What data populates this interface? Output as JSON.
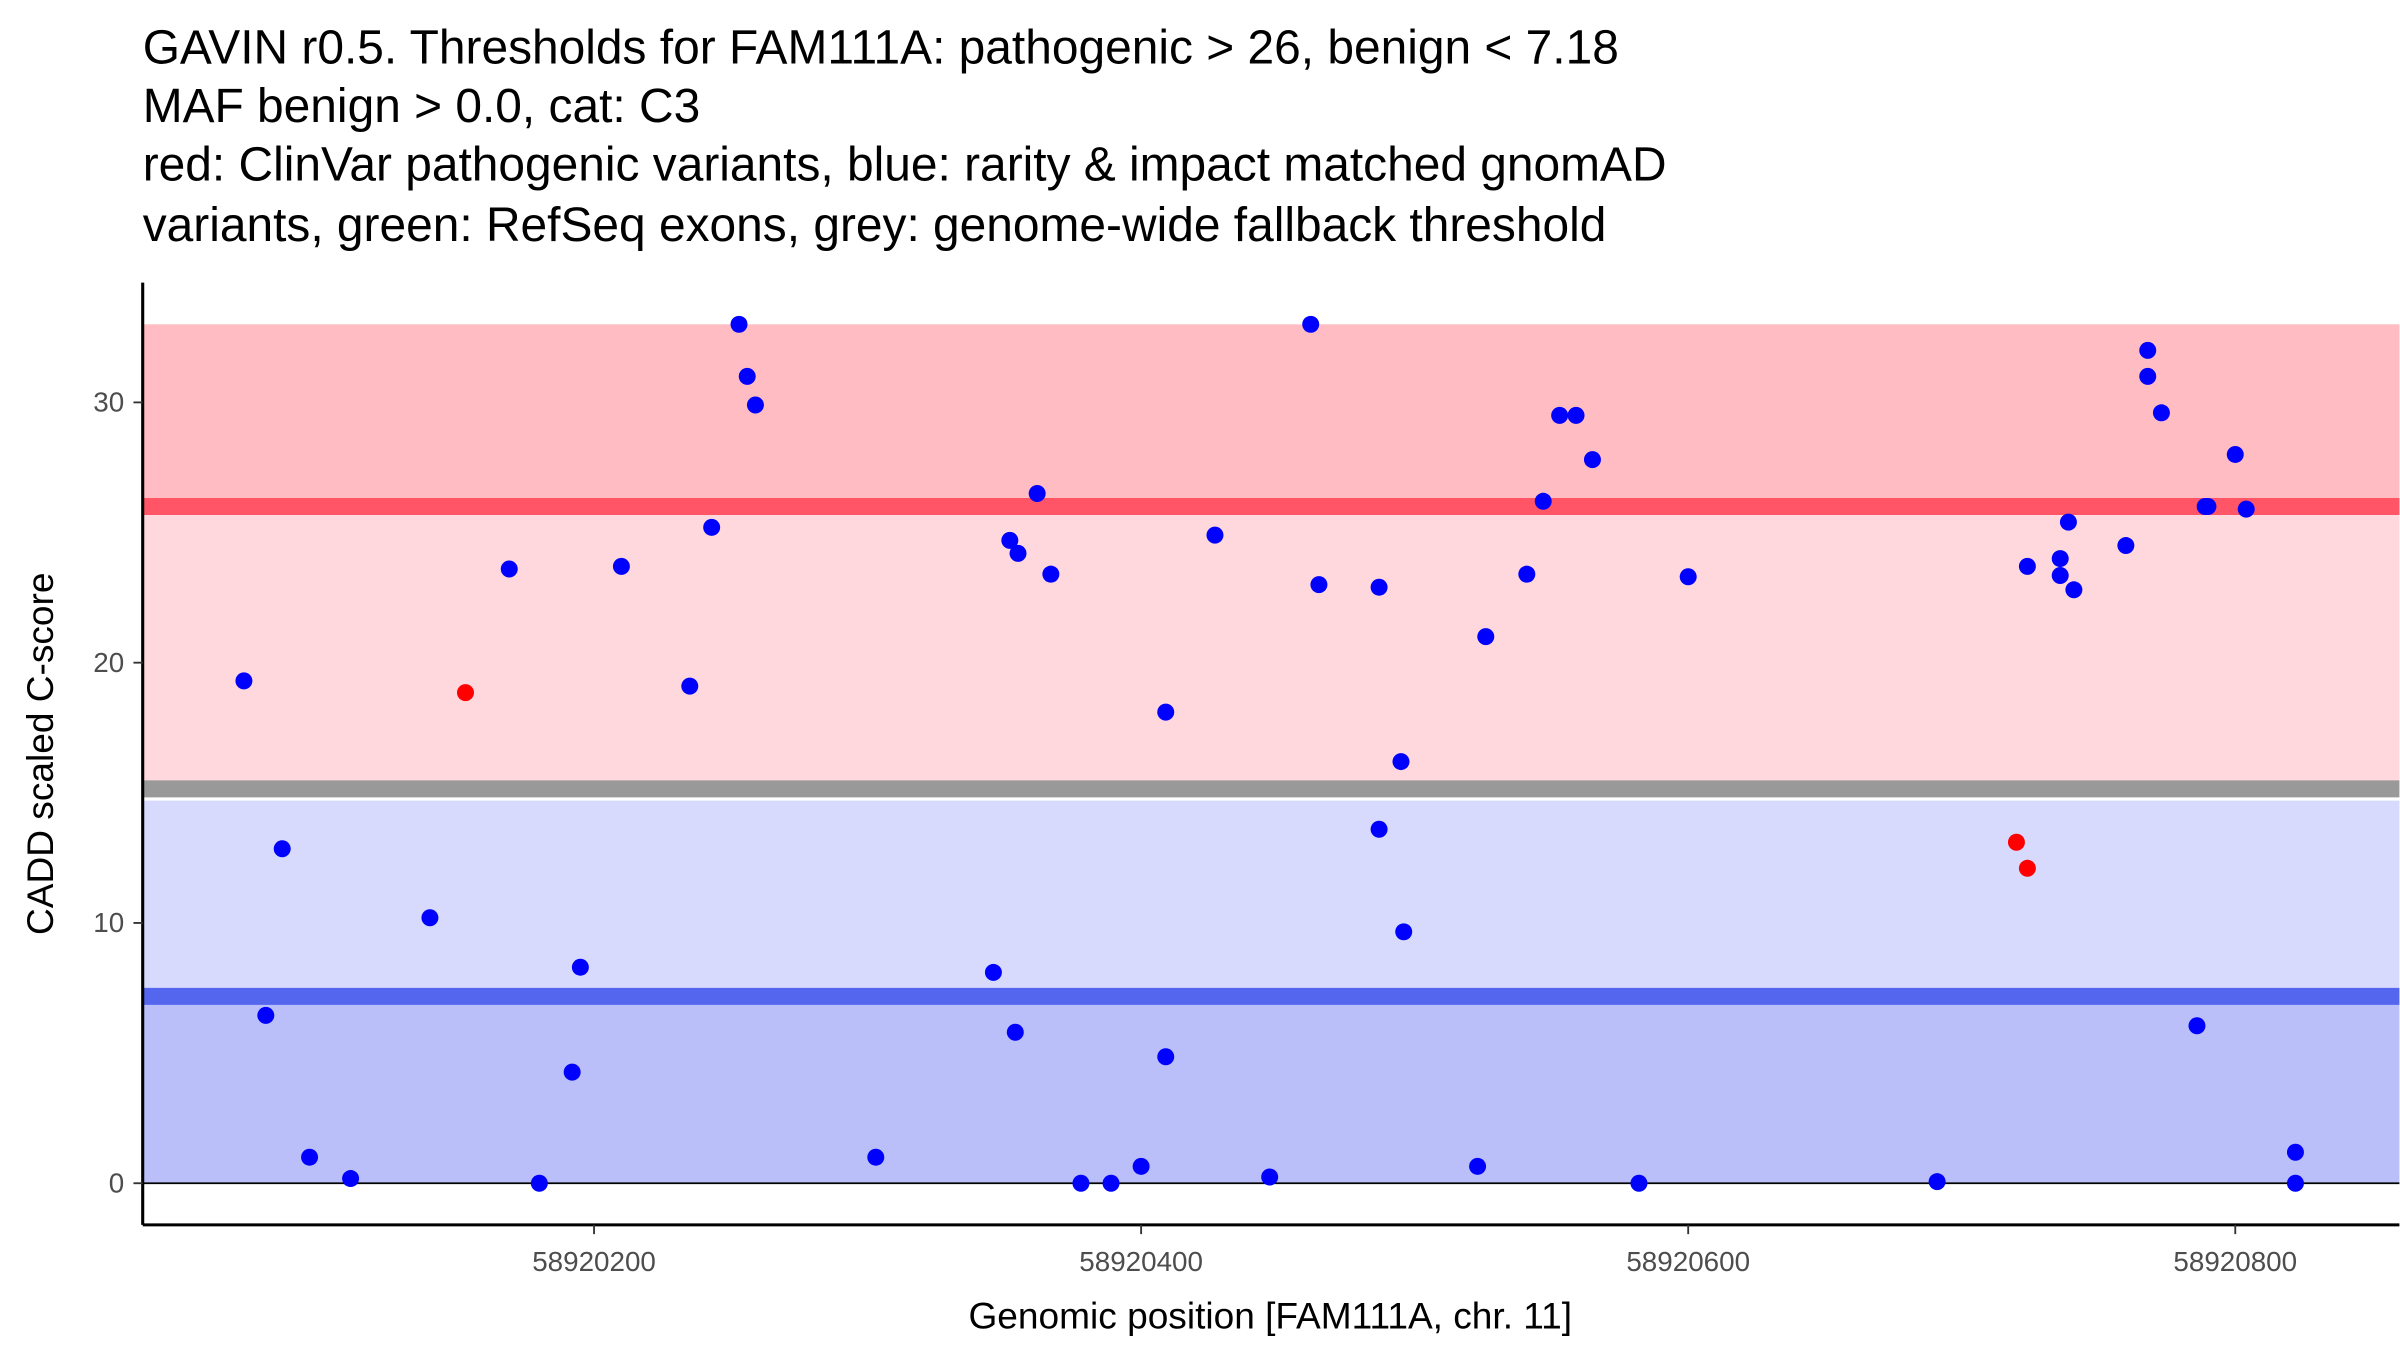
{
  "chart_data": {
    "type": "scatter",
    "title_lines": [
      "GAVIN r0.5. Thresholds for FAM111A: pathogenic > 26, benign < 7.18",
      "MAF benign > 0.0, cat: C3",
      "red: ClinVar pathogenic variants, blue: rarity & impact matched gnomAD",
      "variants, green: RefSeq exons, grey: genome-wide fallback threshold"
    ],
    "xlabel": "Genomic position [FAM111A, chr. 11]",
    "ylabel": "CADD scaled C-score",
    "xlim": [
      58920035,
      58920860
    ],
    "ylim": [
      -1.6,
      34.6
    ],
    "xticks": [
      58920200,
      58920400,
      58920600,
      58920800
    ],
    "xtick_labels": [
      "58920200",
      "58920400",
      "58920600",
      "58920800"
    ],
    "yticks": [
      0,
      10,
      20,
      30
    ],
    "ytick_labels": [
      "0",
      "10",
      "20",
      "30"
    ],
    "grid": false,
    "thresholds": {
      "pathogenic": 26,
      "benign": 7.18,
      "fallback": 15.15,
      "pathogenic_band_top": 33.0,
      "fallback_band_low": 14.7
    },
    "colors": {
      "pathogenic_dark": "#ffbcc2",
      "pathogenic_light": "#ffd8dd",
      "benign_light": "#d7dafd",
      "benign_dark": "#babffa",
      "pathogenic_line": "#ff5566",
      "fallback_line": "#999999",
      "benign_line": "#5566ee",
      "clinvar": "#ff0000",
      "gnomad": "#0000ff"
    },
    "series": [
      {
        "name": "ClinVar pathogenic",
        "color": "#ff0000",
        "points": [
          [
            58920153,
            18.85
          ],
          [
            58920720,
            13.1
          ],
          [
            58920724,
            12.1
          ]
        ]
      },
      {
        "name": "gnomAD matched",
        "color": "#0000ff",
        "points": [
          [
            58920072,
            19.3
          ],
          [
            58920086,
            12.85
          ],
          [
            58920080,
            6.45
          ],
          [
            58920096,
            1.0
          ],
          [
            58920111,
            0.18
          ],
          [
            58920140,
            10.2
          ],
          [
            58920169,
            23.6
          ],
          [
            58920180,
            0
          ],
          [
            58920192,
            4.27
          ],
          [
            58920195,
            8.3
          ],
          [
            58920210,
            23.7
          ],
          [
            58920235,
            19.1
          ],
          [
            58920243,
            25.2
          ],
          [
            58920253,
            33.0
          ],
          [
            58920256,
            31.0
          ],
          [
            58920259,
            29.9
          ],
          [
            58920303,
            1.0
          ],
          [
            58920346,
            8.1
          ],
          [
            58920352,
            24.7
          ],
          [
            58920354,
            5.8
          ],
          [
            58920355,
            24.2
          ],
          [
            58920362,
            26.5
          ],
          [
            58920367,
            23.4
          ],
          [
            58920378,
            0
          ],
          [
            58920389,
            0
          ],
          [
            58920400,
            0.65
          ],
          [
            58920409,
            18.1
          ],
          [
            58920409,
            4.86
          ],
          [
            58920427,
            24.9
          ],
          [
            58920447,
            0.24
          ],
          [
            58920462,
            33.0
          ],
          [
            58920465,
            23.0
          ],
          [
            58920487,
            22.9
          ],
          [
            58920487,
            13.6
          ],
          [
            58920495,
            16.2
          ],
          [
            58920496,
            9.66
          ],
          [
            58920523,
            0.65
          ],
          [
            58920526,
            21.0
          ],
          [
            58920541,
            23.4
          ],
          [
            58920547,
            26.2
          ],
          [
            58920553,
            29.5
          ],
          [
            58920559,
            29.5
          ],
          [
            58920565,
            27.8
          ],
          [
            58920582,
            0
          ],
          [
            58920600,
            23.3
          ],
          [
            58920691,
            0.06
          ],
          [
            58920724,
            23.7
          ],
          [
            58920736,
            24.0
          ],
          [
            58920736,
            23.35
          ],
          [
            58920739,
            25.4
          ],
          [
            58920741,
            22.8
          ],
          [
            58920760,
            24.5
          ],
          [
            58920768,
            32.0
          ],
          [
            58920768,
            31.0
          ],
          [
            58920773,
            29.6
          ],
          [
            58920786,
            6.05
          ],
          [
            58920789,
            26.0
          ],
          [
            58920790,
            26.0
          ],
          [
            58920800,
            28.0
          ],
          [
            58920804,
            25.9
          ],
          [
            58920822,
            1.19
          ],
          [
            58920822,
            0
          ]
        ]
      }
    ]
  }
}
